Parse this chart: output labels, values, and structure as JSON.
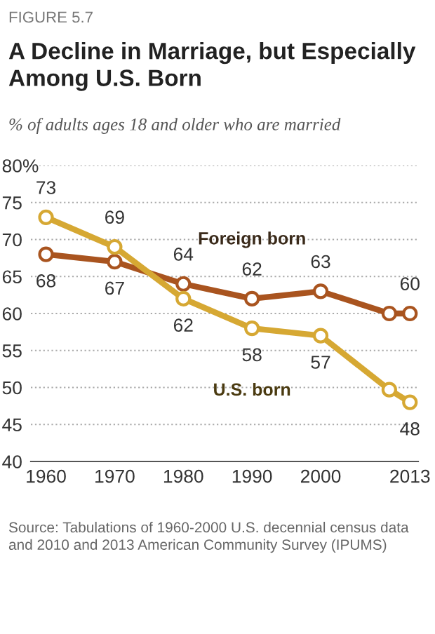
{
  "chart_data": {
    "type": "line",
    "title": "A Decline in Marriage, but Especially Among U.S. Born",
    "subtitle": "% of adults ages 18 and older who are married",
    "annotations": [
      "FIGURE 5.7",
      "Source: Tabulations of 1960-2000 U.S. decennial census data and 2010 and 2013 American Community Survey (IPUMS)"
    ],
    "x": [
      1960,
      1970,
      1980,
      1990,
      2000,
      2010,
      2013
    ],
    "series": [
      {
        "name": "Foreign born",
        "color": "#a9541f",
        "values": [
          68,
          67,
          64,
          62,
          63,
          60,
          60
        ],
        "value_labels": [
          "68",
          "67",
          "64",
          "62",
          "63",
          null,
          "60"
        ]
      },
      {
        "name": "U.S. born",
        "color": "#d6a833",
        "values": [
          73,
          69,
          62,
          58,
          57,
          49.7,
          48
        ],
        "value_labels": [
          "73",
          "69",
          "62",
          "58",
          "57",
          null,
          "48"
        ]
      }
    ],
    "xlim": [
      1957.8,
      2014.2
    ],
    "xticks": [
      1960,
      1970,
      1980,
      1990,
      2000,
      2013
    ],
    "ylim": [
      40,
      80
    ],
    "yticks": [
      40,
      45,
      50,
      55,
      60,
      65,
      70,
      75,
      {
        "value": 80,
        "label": "80%"
      }
    ],
    "grid": "y",
    "marker": "circle",
    "line_style": "solid",
    "legend": false
  }
}
